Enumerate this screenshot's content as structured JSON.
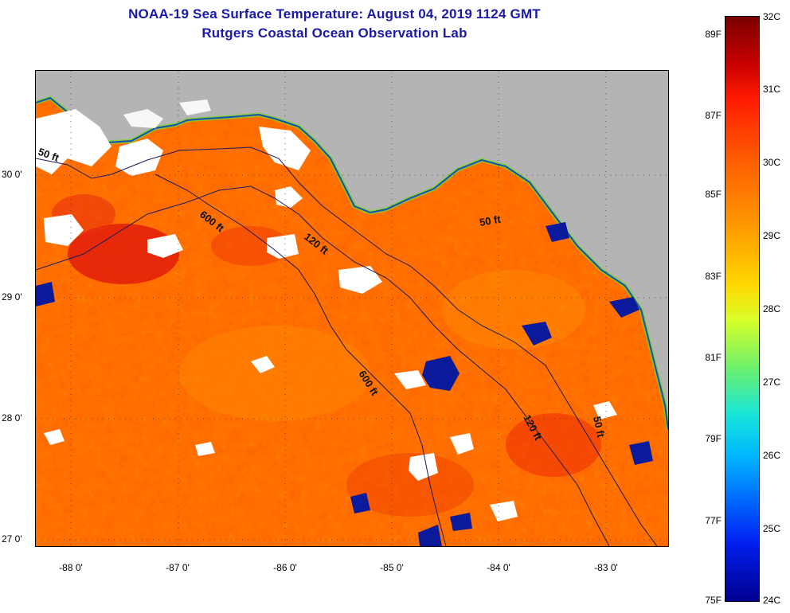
{
  "header": {
    "title": "NOAA-19 Sea Surface Temperature:  August 04, 2019 1124 GMT",
    "subtitle": "Rutgers Coastal Ocean Observation Lab"
  },
  "map": {
    "lat_ticks": [
      "30 0'",
      "29 0'",
      "28 0'",
      "27 0'"
    ],
    "lon_ticks": [
      "-88 0'",
      "-87 0'",
      "-86 0'",
      "-85 0'",
      "-84 0'",
      "-83 0'"
    ],
    "contour_labels": [
      "50 ft",
      "600 ft",
      "120 ft",
      "50 ft",
      "600 ft",
      "120 ft",
      "50 ft"
    ],
    "colors": {
      "land": "#b4b4b4",
      "cloud": "#ffffff",
      "warm_water": "#ff6a00",
      "hot_water": "#e21a0a",
      "cool_water": "#0018a0"
    }
  },
  "colorbar": {
    "fahrenheit": [
      "89F",
      "87F",
      "85F",
      "83F",
      "81F",
      "79F",
      "77F",
      "75F"
    ],
    "celsius": [
      "32C",
      "31C",
      "30C",
      "29C",
      "28C",
      "27C",
      "26C",
      "25C",
      "24C"
    ],
    "min_c": 24,
    "max_c": 32
  }
}
